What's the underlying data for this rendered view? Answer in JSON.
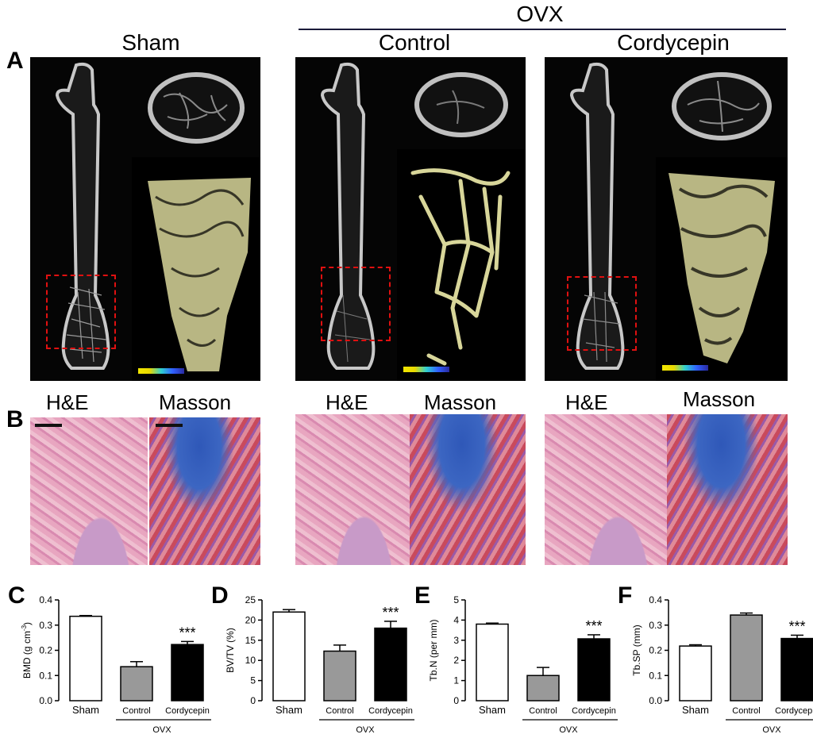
{
  "panel_A": {
    "letter": "A",
    "ovx_label": "OVX",
    "groups": [
      "Sham",
      "Control",
      "Cordycepin"
    ]
  },
  "panel_B": {
    "letter": "B",
    "stains": [
      "H&E",
      "Masson"
    ]
  },
  "colors": {
    "sham_bar": "#ffffff",
    "control_bar": "#999999",
    "cordycepin_bar": "#000000",
    "roi": "#e01010"
  },
  "chart_data": [
    {
      "letter": "C",
      "type": "bar",
      "ylabel": "BMD (g cm",
      "ylabel_sup": "-3",
      "ylabel_tail": ")",
      "categories": [
        "Sham",
        "Control",
        "Cordycepin"
      ],
      "group_label": "OVX",
      "values": [
        0.335,
        0.135,
        0.223
      ],
      "errors": [
        0.003,
        0.02,
        0.012
      ],
      "ylim": [
        0,
        0.4
      ],
      "yticks": [
        "0.0",
        "0.1",
        "0.2",
        "0.3",
        "0.4"
      ],
      "significance": "***"
    },
    {
      "letter": "D",
      "type": "bar",
      "ylabel": "BV/TV  (%)",
      "ylabel_sup": "",
      "ylabel_tail": "",
      "categories": [
        "Sham",
        "Control",
        "Cordycepin"
      ],
      "group_label": "OVX",
      "values": [
        22.0,
        12.3,
        18.0
      ],
      "errors": [
        0.6,
        1.5,
        1.7
      ],
      "ylim": [
        0,
        25
      ],
      "yticks": [
        "0",
        "5",
        "10",
        "15",
        "20",
        "25"
      ],
      "significance": "***"
    },
    {
      "letter": "E",
      "type": "bar",
      "ylabel": "Tb.N (per mm)",
      "ylabel_sup": "",
      "ylabel_tail": "",
      "categories": [
        "Sham",
        "Control",
        "Cordycepin"
      ],
      "group_label": "OVX",
      "values": [
        3.8,
        1.25,
        3.07
      ],
      "errors": [
        0.05,
        0.4,
        0.2
      ],
      "ylim": [
        0,
        5
      ],
      "yticks": [
        "0",
        "1",
        "2",
        "3",
        "4",
        "5"
      ],
      "significance": "***"
    },
    {
      "letter": "F",
      "type": "bar",
      "ylabel": "Tb.SP (mm)",
      "ylabel_sup": "",
      "ylabel_tail": "",
      "categories": [
        "Sham",
        "Control",
        "Cordycepin"
      ],
      "group_label": "OVX",
      "values": [
        0.217,
        0.34,
        0.247
      ],
      "errors": [
        0.005,
        0.008,
        0.013
      ],
      "ylim": [
        0,
        0.4
      ],
      "yticks": [
        "0.0",
        "0.1",
        "0.2",
        "0.3",
        "0.4"
      ],
      "significance": "***"
    }
  ]
}
